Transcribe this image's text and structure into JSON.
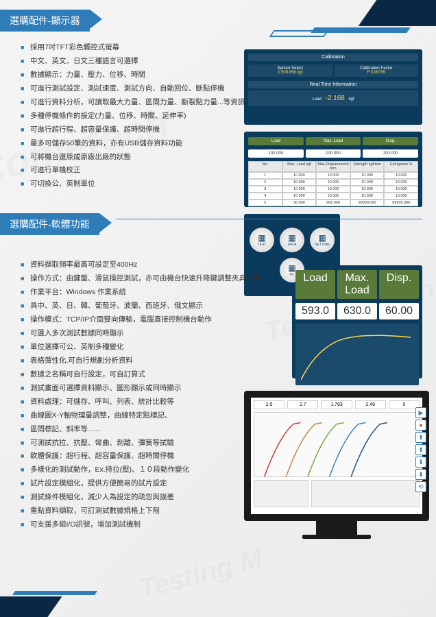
{
  "section1": {
    "title": "選購配件-顯示器",
    "bullets": [
      "採用7吋TFT彩色觸控式螢幕",
      "中文、英文、日文三種語言可選擇",
      "數據顯示：力量、壓力、位移、時間",
      "可進行測試設定、測試速度、測試方向、自動回位、斷點停機",
      "可進行資料分析，可讀取最大力量、區間力量、斷裂點力量...等資訊",
      "多種停機條件的設定(力量、位移、時間、延伸率)",
      "可進行超行程、超容量保護、超時間停機",
      "最多可儲存50筆的資料，亦有USB儲存資料功能",
      "可將機台還原成原廠出廠的狀態",
      "可進行單機校正",
      "可切換公、英制單位"
    ]
  },
  "screen1": {
    "title": "Calibration",
    "sensor_label": "Sensor Select",
    "sensor_val": "1:509.858 kgf",
    "factor_label": "Calibration Factor",
    "factor_val": "F:0.98795",
    "rt_title": "Real Time Information",
    "load_label": "Load",
    "load_val": "-2.168",
    "load_unit": "kgf"
  },
  "screen2": {
    "headers": [
      "Load",
      "Max. Load",
      "Disp."
    ],
    "header_vals": [
      "100.000",
      "100.000",
      "200.000"
    ],
    "cols": [
      "No.",
      "Max. Load kgf",
      "Max.Displacement mm",
      "Strength kgf/mm",
      "Elongation %"
    ],
    "rows": [
      [
        "1",
        "10.000",
        "10.000",
        "10.000",
        "10.000"
      ],
      [
        "2",
        "10.000",
        "10.000",
        "10.000",
        "10.000"
      ],
      [
        "3",
        "10.000",
        "10.000",
        "10.000",
        "10.000"
      ],
      [
        "4",
        "10.000",
        "10.000",
        "10.000",
        "10.000"
      ],
      [
        "5",
        "30.000",
        "908.000",
        "90000.000",
        "99999.000"
      ]
    ]
  },
  "screen3": {
    "icons": [
      "TEST",
      "DATA",
      "SETTING",
      "PC"
    ]
  },
  "screen4": {
    "headers": [
      "Load",
      "Max. Load",
      "Disp."
    ],
    "vals": [
      "593.0",
      "630.0",
      "60.00"
    ],
    "curve_color": "#ffd84d"
  },
  "section2": {
    "title": "選購配件-軟體功能",
    "bullets": [
      "資料擷取頻率最高可設定至400Hz",
      "操作方式：由鍵盤、滑鼠操控測試，亦可由機台快速升降鍵調整夾具位置",
      "作業平台：Windows 作業系統",
      "具中、英、日、韓、葡萄牙、波蘭、西班牙、俄文顯示",
      "操作模式：TCP/IP介面雙向傳輸，電腦直接控制機台動作",
      "可匯入多次測試數據同時顯示",
      "單位選擇可公、英制多種變化",
      "表格彈性化,可自行規劃分析資料",
      "數據之名稱可自行設定，可自訂算式",
      "測試畫面可選擇資料顯示、圖形顯示或同時顯示",
      "資料處理：可儲存、呼叫、列表、統計比較等",
      "曲線圖X-Y軸物理量調整，曲線特定點標記、",
      "區間標記、斜率等......",
      "可測試抗拉、抗壓、彎曲、剝離、彈簧等試驗",
      "軟體保護：超行程、超容量保護、超時間停機",
      "多樣化的測試動作，Ex.持拉(壓)、１０段動作變化",
      "試片設定模組化，提供方便簡易的試片設定",
      "測試條件模組化，減少人為設定的疏忽與誤差",
      "重點資料擷取，可訂測試數據規格上下限",
      "可支援多組I/O訊號，增加測試機制"
    ]
  },
  "monitor": {
    "vals": [
      "2.5",
      "2.7",
      "1.793",
      "2.49",
      "0"
    ],
    "curve_colors": [
      "#d04545",
      "#d08a45",
      "#7ab045",
      "#3a8ac0",
      "#2a5a8a"
    ],
    "btns": [
      "▶",
      "●",
      "⬆",
      "⬆",
      "⬇",
      "⬇",
      "⟲"
    ]
  },
  "colors": {
    "primary": "#2e7cb8",
    "dark": "#0a2845",
    "screen_bg": "#0a3a5c",
    "accent": "#ffd84d"
  }
}
